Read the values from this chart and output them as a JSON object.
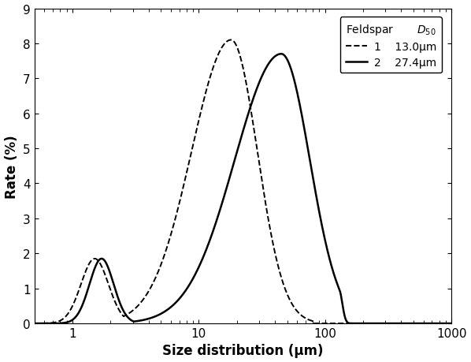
{
  "xlabel": "Size distribution (μm)",
  "ylabel": "Rate (%)",
  "ylim": [
    0,
    9
  ],
  "yticks": [
    0,
    1,
    2,
    3,
    4,
    5,
    6,
    7,
    8,
    9
  ],
  "series": [
    {
      "label": "1",
      "d50_label": "13.0μm",
      "linestyle": "dashed",
      "color": "#000000",
      "linewidth": 1.4
    },
    {
      "label": "2",
      "d50_label": "27.4μm",
      "linestyle": "solid",
      "color": "#000000",
      "linewidth": 1.8
    }
  ]
}
